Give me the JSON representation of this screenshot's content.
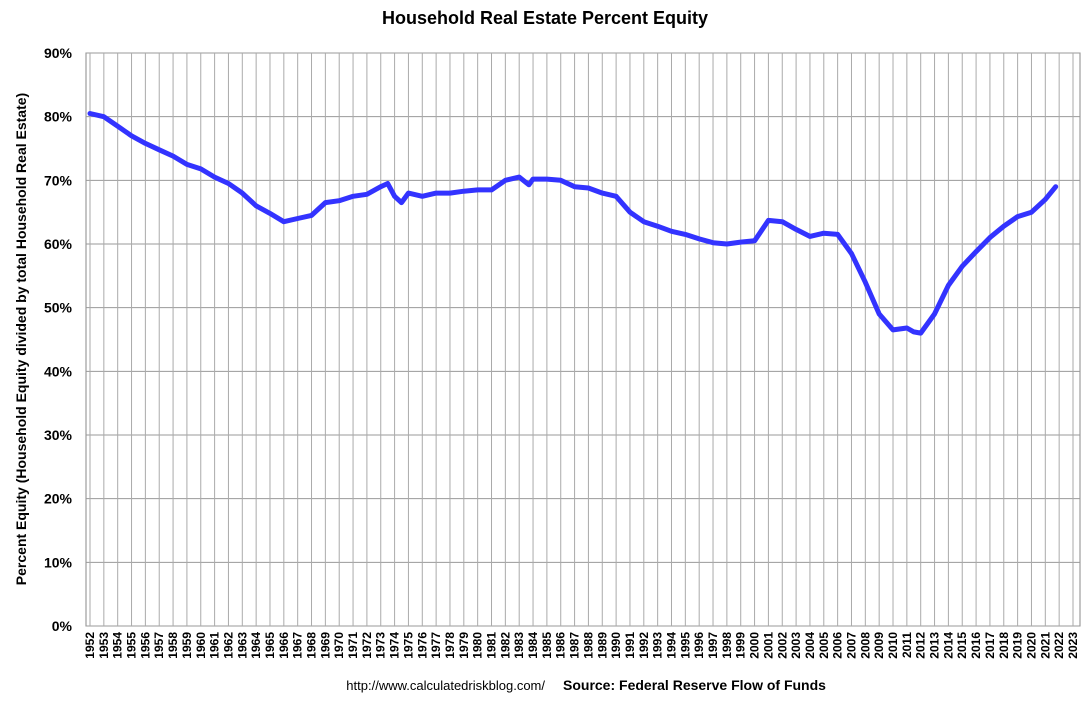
{
  "chart_data": {
    "type": "line",
    "title": "Household Real Estate Percent Equity",
    "y_label": "Percent Equity (Household Equity divided by total Household Real Estate)",
    "url": "http://www.calculatedriskblog.com/",
    "source": "Source: Federal Reserve Flow of Funds",
    "x": [
      1952,
      1953,
      1954,
      1955,
      1956,
      1957,
      1958,
      1959,
      1960,
      1961,
      1962,
      1963,
      1964,
      1965,
      1966,
      1967,
      1968,
      1969,
      1970,
      1971,
      1972,
      1973,
      1973.5,
      1974,
      1974.5,
      1975,
      1976,
      1977,
      1978,
      1979,
      1980,
      1981,
      1982,
      1983,
      1983.7,
      1984,
      1985,
      1986,
      1987,
      1988,
      1989,
      1990,
      1991,
      1992,
      1993,
      1994,
      1995,
      1996,
      1997,
      1998,
      1999,
      2000,
      2001,
      2002,
      2003,
      2004,
      2005,
      2006,
      2007,
      2008,
      2009,
      2010,
      2011,
      2011.5,
      2012,
      2013,
      2014,
      2015,
      2016,
      2017,
      2018,
      2019,
      2020,
      2021,
      2021.75
    ],
    "series": [
      {
        "name": "Percent Equity",
        "color": "#3333ff",
        "values": [
          80.5,
          80,
          78.5,
          77,
          75.8,
          74.8,
          73.8,
          72.5,
          71.8,
          70.5,
          69.5,
          68,
          66,
          64.8,
          63.5,
          64,
          64.5,
          66.5,
          66.8,
          67.5,
          67.8,
          69,
          69.5,
          67.5,
          66.5,
          68,
          67.5,
          68,
          68,
          68.3,
          68.5,
          68.5,
          70,
          70.5,
          69.3,
          70.2,
          70.2,
          70,
          69,
          68.8,
          68,
          67.5,
          65,
          63.5,
          62.8,
          62,
          61.5,
          60.8,
          60.2,
          60,
          60.3,
          60.5,
          63.7,
          63.5,
          62.3,
          61.2,
          61.7,
          61.5,
          58.5,
          54,
          49,
          46.5,
          46.8,
          46.2,
          46,
          49,
          53.5,
          56.5,
          58.8,
          61,
          62.8,
          64.3,
          65,
          67,
          69
        ]
      }
    ],
    "xlim": [
      1952,
      2023
    ],
    "xticks": [
      1952,
      1953,
      1954,
      1955,
      1956,
      1957,
      1958,
      1959,
      1960,
      1961,
      1962,
      1963,
      1964,
      1965,
      1966,
      1967,
      1968,
      1969,
      1970,
      1971,
      1972,
      1973,
      1974,
      1975,
      1976,
      1977,
      1978,
      1979,
      1980,
      1981,
      1982,
      1983,
      1984,
      1985,
      1986,
      1987,
      1988,
      1989,
      1990,
      1991,
      1992,
      1993,
      1994,
      1995,
      1996,
      1997,
      1998,
      1999,
      2000,
      2001,
      2002,
      2003,
      2004,
      2005,
      2006,
      2007,
      2008,
      2009,
      2010,
      2011,
      2012,
      2013,
      2014,
      2015,
      2016,
      2017,
      2018,
      2019,
      2020,
      2021,
      2022,
      2023
    ],
    "ylim": [
      0,
      90
    ],
    "yticks": [
      {
        "value": 0,
        "label": "0%"
      },
      {
        "value": 10,
        "label": "10%"
      },
      {
        "value": 20,
        "label": "20%"
      },
      {
        "value": 30,
        "label": "30%"
      },
      {
        "value": 40,
        "label": "40%"
      },
      {
        "value": 50,
        "label": "50%"
      },
      {
        "value": 60,
        "label": "60%"
      },
      {
        "value": 70,
        "label": "70%"
      },
      {
        "value": 80,
        "label": "80%"
      },
      {
        "value": 90,
        "label": "90%"
      }
    ],
    "grid": true
  }
}
